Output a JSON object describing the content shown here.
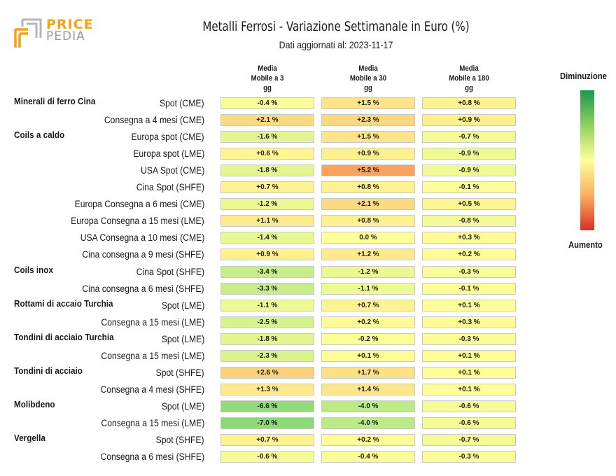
{
  "logo": {
    "line1": "PRICE",
    "line2": "PEDIA"
  },
  "chart_data": {
    "type": "table",
    "title": "Metalli Ferrosi - Variazione Settimanale in Euro (%)",
    "subtitle": "Dati aggiornati al: 2023-11-17",
    "columns": [
      "Media\nMobile a 3\ngg",
      "Media\nMobile a 30\ngg",
      "Media\nMobile a 180\ngg"
    ],
    "legend": {
      "top_label": "Diminuzione",
      "bottom_label": "Aumento"
    },
    "rows": [
      {
        "group": "Minerali di ferro Cina",
        "label": "Spot (CME)",
        "values": [
          -0.4,
          1.5,
          0.8
        ]
      },
      {
        "group": "",
        "label": "Consegna a 4 mesi (CME)",
        "values": [
          2.1,
          2.3,
          0.9
        ]
      },
      {
        "group": "Coils a caldo",
        "label": "Europa spot (CME)",
        "values": [
          -1.6,
          1.5,
          -0.7
        ]
      },
      {
        "group": "",
        "label": "Europa spot (LME)",
        "values": [
          0.6,
          0.9,
          -0.9
        ]
      },
      {
        "group": "",
        "label": "USA Spot (CME)",
        "values": [
          -1.8,
          5.2,
          -0.9
        ]
      },
      {
        "group": "",
        "label": "Cina Spot (SHFE)",
        "values": [
          0.7,
          0.8,
          -0.1
        ]
      },
      {
        "group": "",
        "label": "Europa Consegna a 6 mesi (CME)",
        "values": [
          -1.2,
          2.1,
          0.5
        ]
      },
      {
        "group": "",
        "label": "Europa Consegna a 15 mesi (LME)",
        "values": [
          1.1,
          0.8,
          -0.8
        ]
      },
      {
        "group": "",
        "label": "USA Consegna a 10 mesi (CME)",
        "values": [
          -1.4,
          0.0,
          0.3
        ]
      },
      {
        "group": "",
        "label": "Cina consegna a 9 mesi (SHFE)",
        "values": [
          0.9,
          1.2,
          0.2
        ]
      },
      {
        "group": "Coils inox",
        "label": "Cina Spot (SHFE)",
        "values": [
          -3.4,
          -1.2,
          -0.3
        ]
      },
      {
        "group": "",
        "label": "Cina consegna a 6 mesi (SHFE)",
        "values": [
          -3.3,
          -1.1,
          -0.1
        ]
      },
      {
        "group": "Rottami di accaio Turchia",
        "label": "Spot (LME)",
        "values": [
          -1.1,
          0.7,
          0.1
        ]
      },
      {
        "group": "",
        "label": "Consegna a 15 mesi (LME)",
        "values": [
          -2.5,
          0.2,
          0.3
        ]
      },
      {
        "group": "Tondini di acciaio Turchia",
        "label": "Spot (LME)",
        "values": [
          -1.8,
          -0.2,
          -0.3
        ]
      },
      {
        "group": "",
        "label": "Consegna a 15 mesi (LME)",
        "values": [
          -2.3,
          0.1,
          0.1
        ]
      },
      {
        "group": "Tondini di acciaio",
        "label": "Spot (SHFE)",
        "values": [
          2.6,
          1.7,
          0.1
        ]
      },
      {
        "group": "",
        "label": "Consegna a 4 mesi (SHFE)",
        "values": [
          1.3,
          1.4,
          0.1
        ]
      },
      {
        "group": "Molibdeno",
        "label": "Spot (LME)",
        "values": [
          -6.6,
          -4.0,
          -0.6
        ]
      },
      {
        "group": "",
        "label": "Consegna a 15 mesi (LME)",
        "values": [
          -7.0,
          -4.0,
          -0.6
        ]
      },
      {
        "group": "Vergella",
        "label": "Spot (SHFE)",
        "values": [
          0.7,
          0.2,
          -0.7
        ]
      },
      {
        "group": "",
        "label": "Consegna a 6 mesi (SHFE)",
        "values": [
          -0.6,
          -0.4,
          -0.3
        ]
      }
    ]
  }
}
